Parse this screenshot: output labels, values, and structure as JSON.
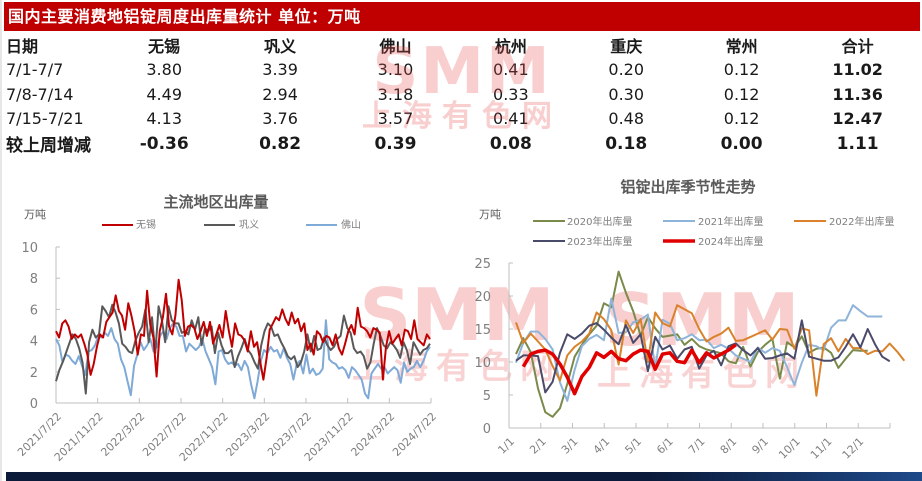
{
  "title": "国内主要消费地铝锭周度出库量统计 单位：万吨",
  "table": {
    "headers": [
      "日期",
      "无锡",
      "巩义",
      "佛山",
      "杭州",
      "重庆",
      "常州",
      "合计"
    ],
    "rows": [
      [
        "7/1-7/7",
        "3.80",
        "3.39",
        "3.10",
        "0.41",
        "0.20",
        "0.12",
        "11.02"
      ],
      [
        "7/8-7/14",
        "4.49",
        "2.94",
        "3.18",
        "0.33",
        "0.30",
        "0.12",
        "11.36"
      ],
      [
        "7/15-7/21",
        "4.13",
        "3.76",
        "3.57",
        "0.41",
        "0.48",
        "0.12",
        "12.47"
      ]
    ],
    "change_row": [
      "较上周增减",
      "-0.36",
      "0.82",
      "0.39",
      "0.08",
      "0.18",
      "0.00",
      "1.11"
    ]
  },
  "watermark": {
    "top": "SMM",
    "bottom": "上海有色网"
  },
  "colors": {
    "title_bar": "#c00000",
    "wuxi": "#c00000",
    "gongyi": "#595959",
    "foshan": "#7fa9d6",
    "y2020": "#7a8a4a",
    "y2021": "#8fb4d9",
    "y2022": "#d9822b",
    "y2023": "#4a4a6a",
    "y2024": "#e00000"
  },
  "chart_data": [
    {
      "type": "line",
      "title": "主流地区出库量",
      "ylabel": "万吨",
      "xlabel": "",
      "ylim": [
        0,
        10
      ],
      "yticks": [
        0,
        2,
        4,
        6,
        8,
        10
      ],
      "xticks": [
        "2021/7/22",
        "2021/11/22",
        "2022/3/22",
        "2022/7/22",
        "2022/11/22",
        "2023/3/22",
        "2023/7/22",
        "2023/11/22",
        "2024/3/22",
        "2024/7/22"
      ],
      "legend_position": "top",
      "grid": false,
      "series": [
        {
          "name": "无锡",
          "values": [
            4.6,
            4.2,
            5.1,
            5.3,
            4.9,
            4.1,
            4.4,
            4.2,
            4.4,
            3.8,
            3.1,
            1.8,
            2.5,
            3.6,
            4.4,
            4.2,
            5.2,
            5.5,
            5.8,
            6.9,
            5.9,
            5.6,
            4.7,
            6.4,
            5.6,
            4.6,
            3.1,
            4.4,
            4.3,
            7.2,
            5.0,
            4.2,
            1.7,
            4.6,
            5.5,
            7.0,
            4.9,
            4.4,
            5.6,
            7.9,
            6.6,
            4.3,
            4.9,
            5.0,
            4.8,
            4.1,
            4.6,
            5.2,
            4.3,
            5.2,
            3.8,
            4.4,
            5.0,
            4.2,
            5.9,
            4.6,
            3.6,
            5.1,
            4.4,
            4.3,
            4.0,
            3.3,
            4.6,
            3.6,
            3.9,
            2.6,
            1.5,
            2.9,
            4.7,
            5.1,
            5.5,
            5.3,
            6.0,
            5.4,
            5.0,
            5.8,
            5.1,
            5.4,
            4.6,
            5.1,
            3.4,
            3.8,
            3.1,
            4.6,
            4.4,
            3.9,
            4.3,
            4.2,
            3.7,
            4.4,
            3.5,
            3.1,
            3.8,
            4.6,
            5.0,
            4.4,
            6.1,
            4.9,
            4.8,
            4.6,
            4.2,
            4.8,
            4.7,
            4.5,
            1.5,
            3.6,
            4.6,
            3.8,
            4.1,
            4.4,
            3.7,
            4.7,
            4.6,
            4.1,
            5.3,
            4.1,
            3.9,
            3.7,
            4.4,
            4.1
          ]
        },
        {
          "name": "巩义",
          "values": [
            1.4,
            2.1,
            2.6,
            3.2,
            3.8,
            4.4,
            4.1,
            3.5,
            2.6,
            0.6,
            3.9,
            4.7,
            4.2,
            4.4,
            6.2,
            5.9,
            5.5,
            6.3,
            5.8,
            5.1,
            3.8,
            3.6,
            3.3,
            3.2,
            4.0,
            4.5,
            4.9,
            6.0,
            3.9,
            5.5,
            3.2,
            6.2,
            5.3,
            3.9,
            6.2,
            5.3,
            5.1,
            5.1,
            4.5,
            4.6,
            4.4,
            5.3,
            4.7,
            5.5,
            3.7,
            4.8,
            4.6,
            4.9,
            3.2,
            4.5,
            3.7,
            3.2,
            3.2,
            3.4,
            2.3,
            3.0,
            3.5,
            4.1,
            3.4,
            3.1,
            2.6,
            2.2,
            3.7,
            4.6,
            5.1,
            4.9,
            4.3,
            4.4,
            3.9,
            3.5,
            3.0,
            2.8,
            3.0,
            2.3,
            2.6,
            3.3,
            4.4,
            3.3,
            4.3,
            3.4,
            3.5,
            4.2,
            3.7,
            3.4,
            3.6,
            4.1,
            4.3,
            5.6,
            4.8,
            4.5,
            3.5,
            3.2,
            3.3,
            3.0,
            2.2,
            2.6,
            3.8,
            4.8,
            4.3,
            3.7,
            3.5,
            3.9,
            3.7,
            3.4,
            2.9,
            3.9,
            3.4,
            2.5,
            3.9,
            3.5,
            3.1,
            3.4,
            3.5,
            3.8
          ]
        },
        {
          "name": "佛山",
          "values": [
            4.1,
            3.7,
            2.6,
            3.1,
            3.0,
            2.7,
            2.5,
            3.0,
            2.4,
            1.8,
            3.3,
            3.4,
            3.7,
            4.3,
            4.2,
            4.5,
            4.3,
            4.8,
            4.1,
            3.8,
            2.8,
            2.3,
            1.4,
            0.5,
            2.4,
            3.1,
            3.9,
            3.4,
            3.7,
            4.1,
            3.3,
            3.6,
            4.3,
            4.6,
            4.1,
            4.8,
            5.1,
            4.9,
            4.3,
            4.3,
            3.3,
            3.8,
            3.6,
            3.4,
            3.6,
            4.1,
            3.3,
            2.8,
            2.3,
            1.2,
            3.3,
            3.4,
            2.8,
            2.5,
            2.6,
            2.4,
            2.5,
            2.1,
            2.7,
            2.3,
            1.2,
            0.3,
            1.4,
            2.7,
            3.4,
            3.2,
            3.6,
            3.3,
            3.4,
            2.9,
            3.5,
            2.9,
            2.5,
            1.5,
            2.5,
            2.7,
            1.9,
            3.1,
            1.9,
            2.2,
            1.8,
            1.9,
            2.2,
            5.3,
            2.8,
            2.6,
            2.5,
            2.2,
            2.3,
            2.1,
            1.6,
            2.3,
            2.1,
            1.8,
            1.5,
            0.6,
            0.3,
            1.9,
            2.2,
            2.5,
            2.2,
            2.3,
            1.9,
            2.1,
            2.3,
            2.1,
            1.3,
            2.6,
            2.0,
            2.2,
            2.3,
            2.7,
            2.3,
            2.7,
            3.3,
            3.6
          ]
        }
      ]
    },
    {
      "type": "line",
      "title": "铝锭出库季节性走势",
      "ylabel": "万吨",
      "xlabel": "",
      "ylim": [
        0,
        25
      ],
      "yticks": [
        0,
        5,
        10,
        15,
        20,
        25
      ],
      "xticks": [
        "1/1",
        "2/1",
        "3/1",
        "4/1",
        "5/1",
        "6/1",
        "7/1",
        "8/1",
        "9/1",
        "10/1",
        "11/1",
        "12/1"
      ],
      "legend_position": "top",
      "grid": false,
      "series": [
        {
          "name": "2020年出库量",
          "values": [
            11.2,
            13.6,
            11.5,
            6.0,
            2.4,
            1.7,
            3.0,
            6.7,
            10.8,
            12.6,
            14.2,
            15.5,
            18.9,
            18.3,
            23.7,
            20.5,
            17.7,
            14.0,
            16.8,
            15.1,
            13.8,
            14.0,
            14.2,
            12.6,
            13.5,
            12.4,
            11.9,
            11.6,
            11.3,
            10.1,
            9.8,
            12.3,
            9.3,
            11.5,
            12.6,
            13.5,
            7.5,
            13.0,
            12.2,
            13.9,
            11.4,
            12.0,
            12.2,
            11.4,
            9.1,
            10.5,
            11.8,
            11.7,
            11.7
          ]
        },
        {
          "name": "2021年出库量",
          "values": [
            9.9,
            12.9,
            14.6,
            14.6,
            13.5,
            11.9,
            6.9,
            4.1,
            8.8,
            12.4,
            13.5,
            14.1,
            13.3,
            19.6,
            14.4,
            14.5,
            16.0,
            16.4,
            17.2,
            9.0,
            16.4,
            15.8,
            13.3,
            13.6,
            14.2,
            13.3,
            13.4,
            12.1,
            12.6,
            12.0,
            11.0,
            10.5,
            10.0,
            12.2,
            11.4,
            12.1,
            11.7,
            9.2,
            6.5,
            9.9,
            12.6,
            12.4,
            11.8,
            15.2,
            16.3,
            16.3,
            18.6,
            17.7,
            16.9,
            16.9,
            16.9
          ]
        },
        {
          "name": "2022年出库量",
          "values": [
            16.0,
            12.9,
            14.3,
            13.1,
            11.9,
            9.4,
            7.2,
            11.0,
            12.3,
            13.1,
            14.3,
            17.5,
            16.5,
            14.8,
            9.6,
            16.3,
            14.4,
            16.5,
            10.0,
            17.5,
            15.9,
            15.4,
            18.6,
            18.0,
            17.4,
            15.0,
            13.1,
            13.8,
            14.3,
            15.2,
            13.2,
            13.3,
            13.8,
            14.3,
            14.8,
            13.4,
            15.0,
            14.9,
            12.0,
            15.1,
            14.8,
            4.9,
            12.7,
            13.6,
            11.6,
            13.5,
            12.1,
            12.1,
            11.2,
            11.7,
            11.6,
            12.8,
            11.6,
            10.2
          ]
        },
        {
          "name": "2023年出库量",
          "values": [
            10.2,
            11.0,
            11.0,
            10.9,
            5.4,
            7.0,
            11.4,
            14.2,
            13.5,
            14.3,
            15.5,
            15.9,
            14.9,
            13.7,
            12.7,
            15.6,
            12.9,
            14.2,
            8.6,
            13.8,
            11.9,
            12.5,
            10.5,
            11.9,
            12.3,
            9.0,
            11.0,
            11.7,
            9.5,
            12.4,
            12.8,
            11.8,
            11.0,
            12.1,
            10.5,
            10.6,
            11.0,
            11.3,
            10.5,
            16.3,
            10.8,
            10.5,
            10.2,
            10.2,
            10.7,
            12.3,
            14.2,
            12.2,
            15.0,
            12.7,
            10.8,
            10.1
          ]
        },
        {
          "name": "2024年出库量",
          "values": [
            9.3,
            11.2,
            11.6,
            11.8,
            11.2,
            9.7,
            7.7,
            5.2,
            7.8,
            9.2,
            11.4,
            10.7,
            11.6,
            10.5,
            10.2,
            11.2,
            11.8,
            11.6,
            8.9,
            11.2,
            11.4,
            10.1,
            9.9,
            11.8,
            9.9,
            11.4,
            10.6,
            11.2,
            11.8,
            12.6
          ]
        }
      ]
    }
  ]
}
